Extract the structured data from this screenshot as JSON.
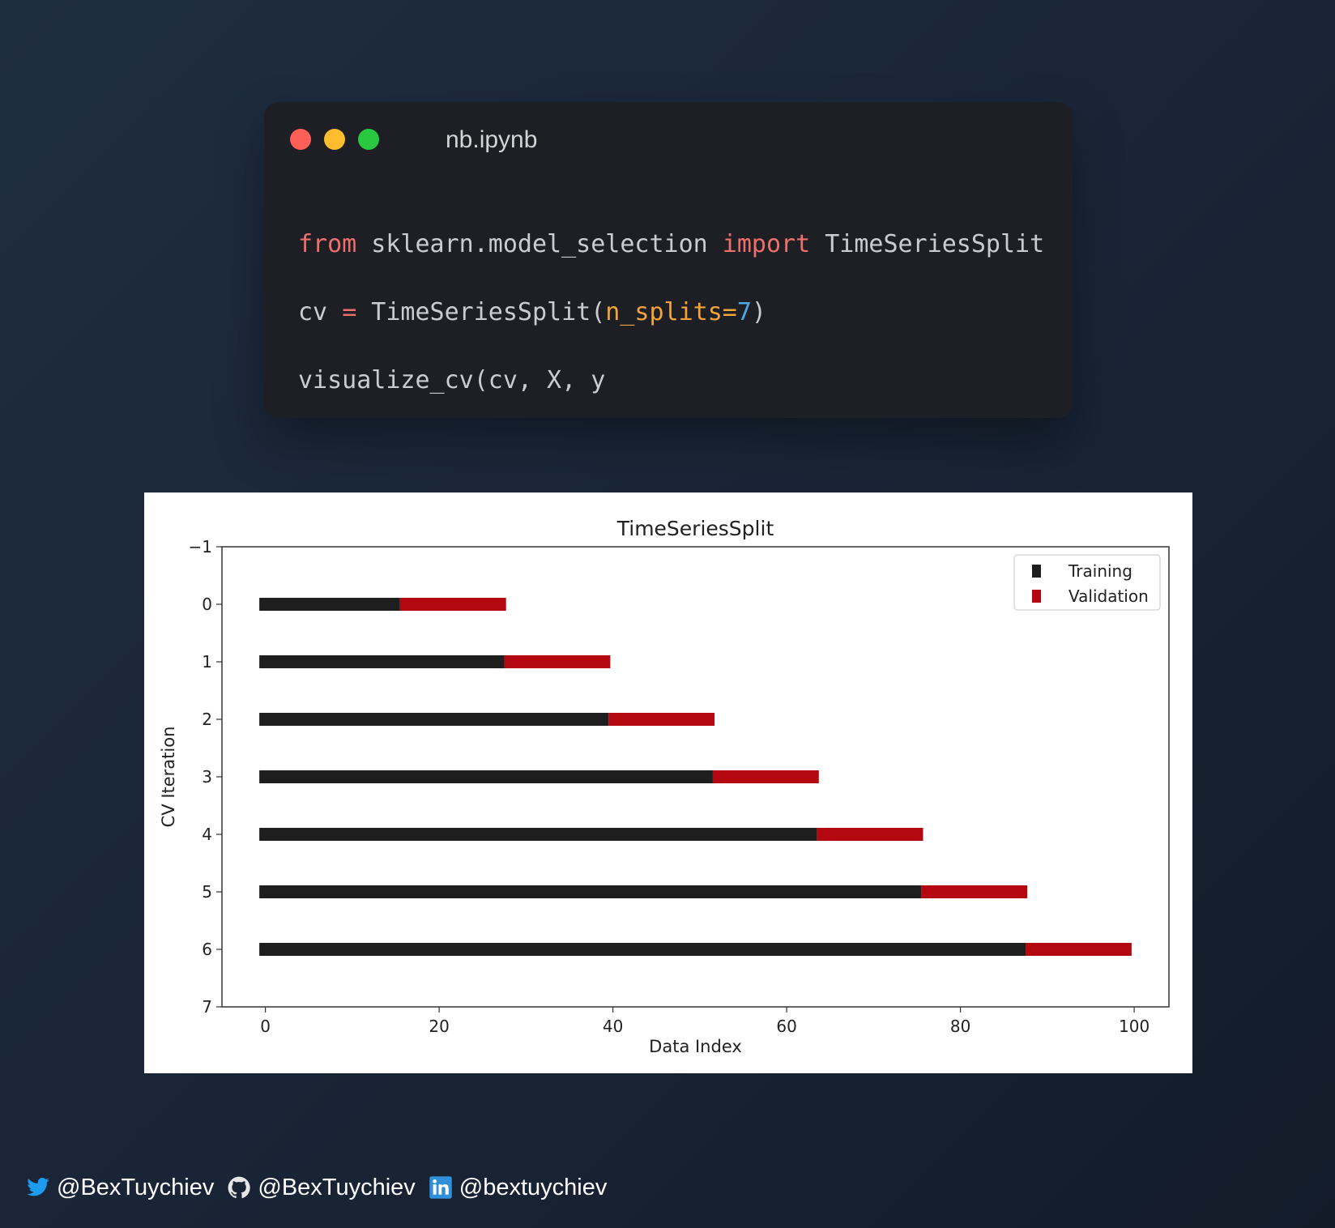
{
  "window": {
    "title": "nb.ipynb",
    "code_lines": [
      [
        {
          "t": "from",
          "c": "kw"
        },
        {
          "t": " sklearn.model_selection ",
          "c": "plain"
        },
        {
          "t": "import",
          "c": "kw"
        },
        {
          "t": " TimeSeriesSplit",
          "c": "plain"
        }
      ],
      [
        {
          "t": "cv ",
          "c": "plain"
        },
        {
          "t": "=",
          "c": "kw"
        },
        {
          "t": " TimeSeriesSplit(",
          "c": "plain"
        },
        {
          "t": "n_splits=",
          "c": "param"
        },
        {
          "t": "7",
          "c": "num"
        },
        {
          "t": ")",
          "c": "plain"
        }
      ],
      [
        {
          "t": "visualize_cv(cv, X, y",
          "c": "plain"
        }
      ]
    ]
  },
  "chart_data": {
    "type": "bar",
    "orientation": "horizontal",
    "stacked": true,
    "title": "TimeSeriesSplit",
    "xlabel": "Data Index",
    "ylabel": "CV Iteration",
    "xlim": [
      -5,
      104
    ],
    "ylim": [
      7,
      -1
    ],
    "xticks": [
      0,
      20,
      40,
      60,
      80,
      100
    ],
    "yticks": [
      -1,
      0,
      1,
      2,
      3,
      4,
      5,
      6,
      7
    ],
    "ytick_labels": [
      "−1",
      "0",
      "1",
      "2",
      "3",
      "4",
      "5",
      "6",
      "7"
    ],
    "iterations": [
      {
        "iteration": 0,
        "train": [
          0,
          15
        ],
        "validation": [
          16,
          27
        ]
      },
      {
        "iteration": 1,
        "train": [
          0,
          27
        ],
        "validation": [
          28,
          39
        ]
      },
      {
        "iteration": 2,
        "train": [
          0,
          39
        ],
        "validation": [
          40,
          51
        ]
      },
      {
        "iteration": 3,
        "train": [
          0,
          51
        ],
        "validation": [
          52,
          63
        ]
      },
      {
        "iteration": 4,
        "train": [
          0,
          63
        ],
        "validation": [
          64,
          75
        ]
      },
      {
        "iteration": 5,
        "train": [
          0,
          75
        ],
        "validation": [
          76,
          87
        ]
      },
      {
        "iteration": 6,
        "train": [
          0,
          87
        ],
        "validation": [
          88,
          99
        ]
      }
    ],
    "legend": {
      "position": "upper right",
      "entries": [
        {
          "label": "Training",
          "color": "#1e1e1e"
        },
        {
          "label": "Validation",
          "color": "#b30810"
        }
      ]
    },
    "grid": false
  },
  "footer": {
    "twitter_icon": "twitter-icon",
    "twitter_handle": "@BexTuychiev",
    "github_icon": "github-icon",
    "github_handle": "@BexTuychiev",
    "linkedin_icon": "linkedin-icon",
    "linkedin_handle": "@bextuychiev"
  }
}
